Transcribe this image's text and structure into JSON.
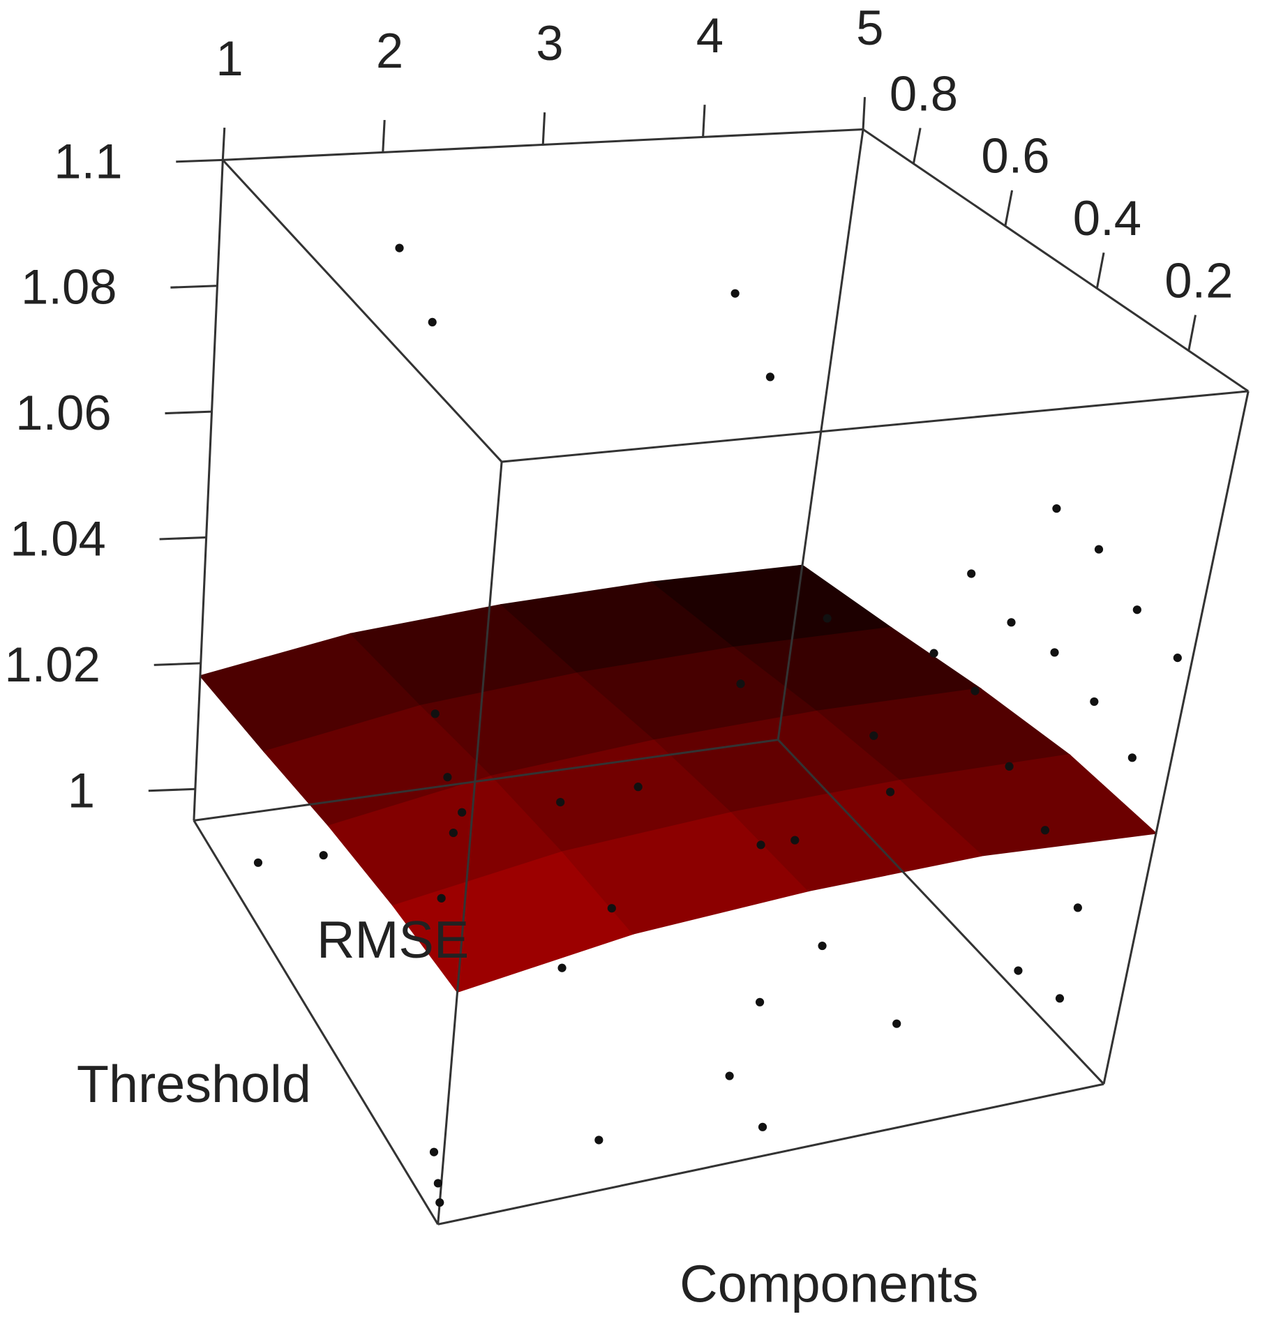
{
  "chart_data": {
    "type": "scatter3d",
    "xlabel": "Components",
    "ylabel": "Threshold",
    "zlabel": "RMSE",
    "xlim": [
      1,
      5
    ],
    "ylim": [
      0.07,
      0.91
    ],
    "zlim": [
      0.995,
      1.1
    ],
    "xticks": [
      1,
      2,
      3,
      4,
      5
    ],
    "yticks": [
      0.2,
      0.4,
      0.6,
      0.8
    ],
    "zticks": [
      1,
      1.02,
      1.04,
      1.06,
      1.08,
      1.1
    ],
    "point_color": "#111111",
    "surface_colors": [
      "#160000",
      "#a30000"
    ],
    "points": {
      "x": [
        2,
        2,
        4,
        4,
        5,
        5,
        5,
        5,
        1,
        1,
        1,
        1,
        2,
        3,
        4,
        5,
        5,
        5,
        5,
        5,
        2,
        3,
        4,
        5,
        5,
        5,
        5,
        5,
        1,
        2,
        3,
        4,
        5,
        1,
        2,
        3,
        4,
        5,
        5,
        1,
        1,
        1,
        2,
        3,
        4,
        3
      ],
      "y": [
        0.85,
        0.75,
        0.8,
        0.7,
        0.4,
        0.3,
        0.2,
        0.1,
        0.2,
        0.15,
        0.1,
        0.12,
        0.1,
        0.3,
        0.5,
        0.55,
        0.45,
        0.35,
        0.25,
        0.15,
        0.3,
        0.2,
        0.3,
        0.6,
        0.5,
        0.4,
        0.3,
        0.2,
        0.5,
        0.25,
        0.15,
        0.5,
        0.7,
        0.7,
        0.6,
        0.55,
        0.4,
        0.3,
        0.2,
        0.1,
        0.08,
        0.07,
        0.1,
        0.2,
        0.2,
        0.1
      ],
      "z": [
        1.088,
        1.082,
        1.08,
        1.072,
        1.065,
        1.064,
        1.06,
        1.058,
        1.058,
        1.052,
        1.05,
        1.046,
        1.05,
        1.05,
        1.045,
        1.046,
        1.044,
        1.045,
        1.043,
        1.04,
        1.036,
        1.032,
        1.03,
        1.03,
        1.03,
        1.024,
        1.02,
        1.014,
        1.019,
        1.015,
        1.012,
        1.01,
        1.01,
        1.004,
        1.002,
        1.0,
        1.0,
        0.998,
        1.0,
        1.003,
        1.0,
        0.998,
        1.0,
        0.998,
        1.001,
        0.997
      ]
    },
    "surface": {
      "x": [
        1,
        2,
        3,
        4,
        5
      ],
      "y": [
        0.91,
        0.7,
        0.49,
        0.28,
        0.07
      ],
      "z": [
        [
          1.018,
          1.022,
          1.024,
          1.025,
          1.025
        ],
        [
          1.021,
          1.025,
          1.027,
          1.028,
          1.028
        ],
        [
          1.024,
          1.028,
          1.03,
          1.031,
          1.031
        ],
        [
          1.026,
          1.03,
          1.032,
          1.033,
          1.033
        ],
        [
          1.027,
          1.031,
          1.033,
          1.034,
          1.033
        ]
      ]
    }
  }
}
